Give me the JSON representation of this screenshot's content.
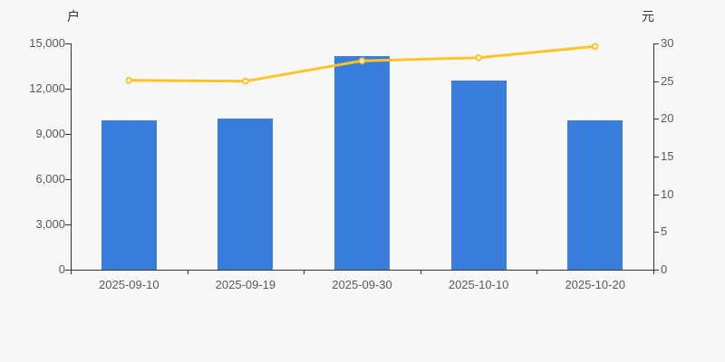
{
  "chart_data": {
    "type": "bar",
    "subtype": "dual-axis-bar-line-combo",
    "title": "",
    "legend": "none",
    "grid": false,
    "categories": [
      "2025-09-10",
      "2025-09-19",
      "2025-09-30",
      "2025-10-10",
      "2025-10-20"
    ],
    "series": [
      {
        "name": "bar-series",
        "type": "bar",
        "y_axis": "left",
        "color": "#3a7edc",
        "values": [
          9920,
          10040,
          14140,
          12540,
          9900
        ]
      },
      {
        "name": "line-series",
        "type": "line",
        "y_axis": "right",
        "color": "#fdc32a",
        "marker": "hollow-circle",
        "marker_fill": "#ffffff",
        "values": [
          25.1,
          25.0,
          27.7,
          28.1,
          29.6
        ]
      }
    ],
    "left_axis": {
      "unit": "户",
      "min": 0,
      "max": 15000,
      "tick_labels": [
        "0",
        "3,000",
        "6,000",
        "9,000",
        "12,000",
        "15,000"
      ]
    },
    "right_axis": {
      "unit": "元",
      "min": 0,
      "max": 30,
      "tick_labels": [
        "0",
        "5",
        "10",
        "15",
        "20",
        "25",
        "30"
      ]
    },
    "colors": {
      "background": "#f7f7f7",
      "axis_line": "#333333",
      "tick_label": "#595959",
      "unit_label": "#333333"
    }
  }
}
